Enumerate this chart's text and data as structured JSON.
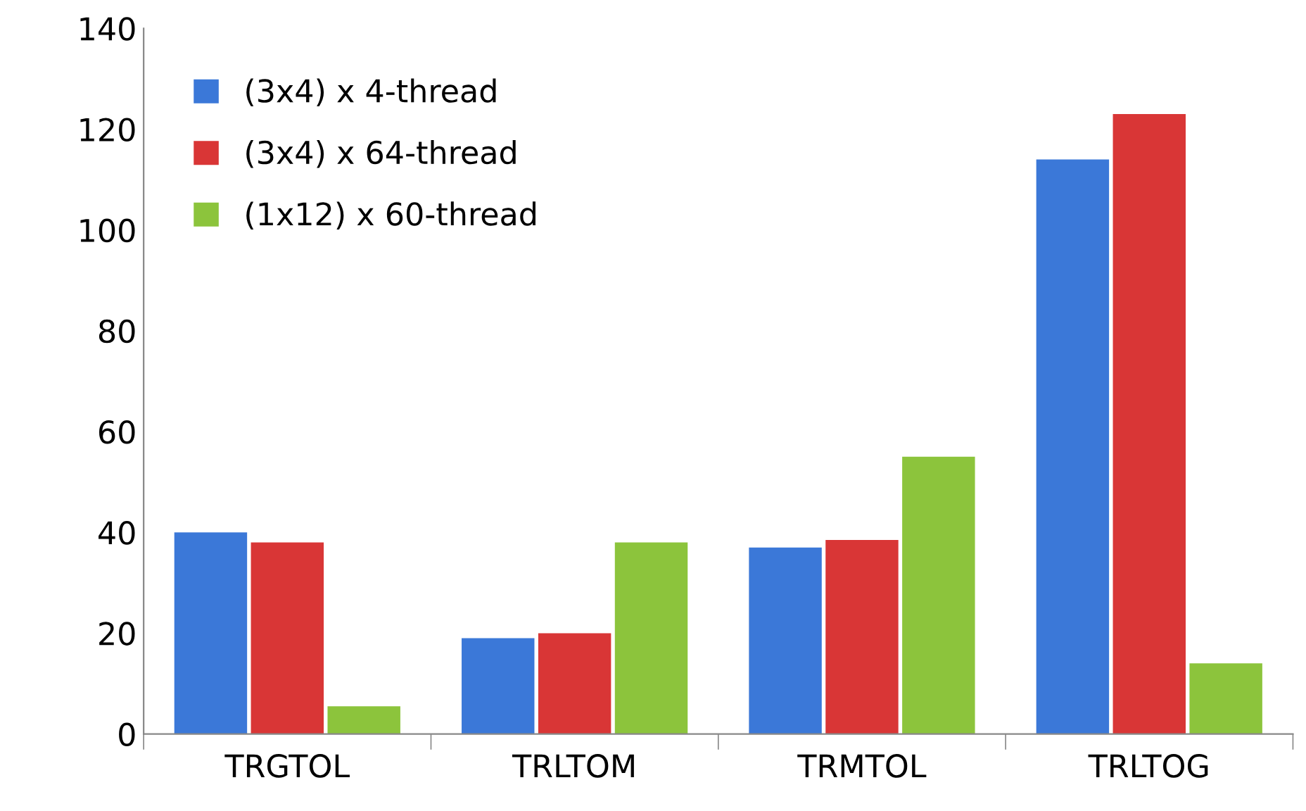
{
  "chart_data": {
    "type": "bar",
    "categories": [
      "TRGTOL",
      "TRLTOM",
      "TRMTOL",
      "TRLTOG"
    ],
    "series": [
      {
        "name": "(3x4) x 4-thread",
        "color": "#3b78d8",
        "values": [
          40,
          19,
          37,
          114
        ]
      },
      {
        "name": "(3x4) x 64-thread",
        "color": "#d93636",
        "values": [
          38,
          20,
          38.5,
          123
        ]
      },
      {
        "name": "(1x12) x 60-thread",
        "color": "#8cc43c",
        "values": [
          5.5,
          38,
          55,
          14
        ]
      }
    ],
    "ylim": [
      0,
      140
    ],
    "yticks": [
      0,
      20,
      40,
      60,
      80,
      100,
      120,
      140
    ],
    "grid": false,
    "legend": "top left"
  }
}
